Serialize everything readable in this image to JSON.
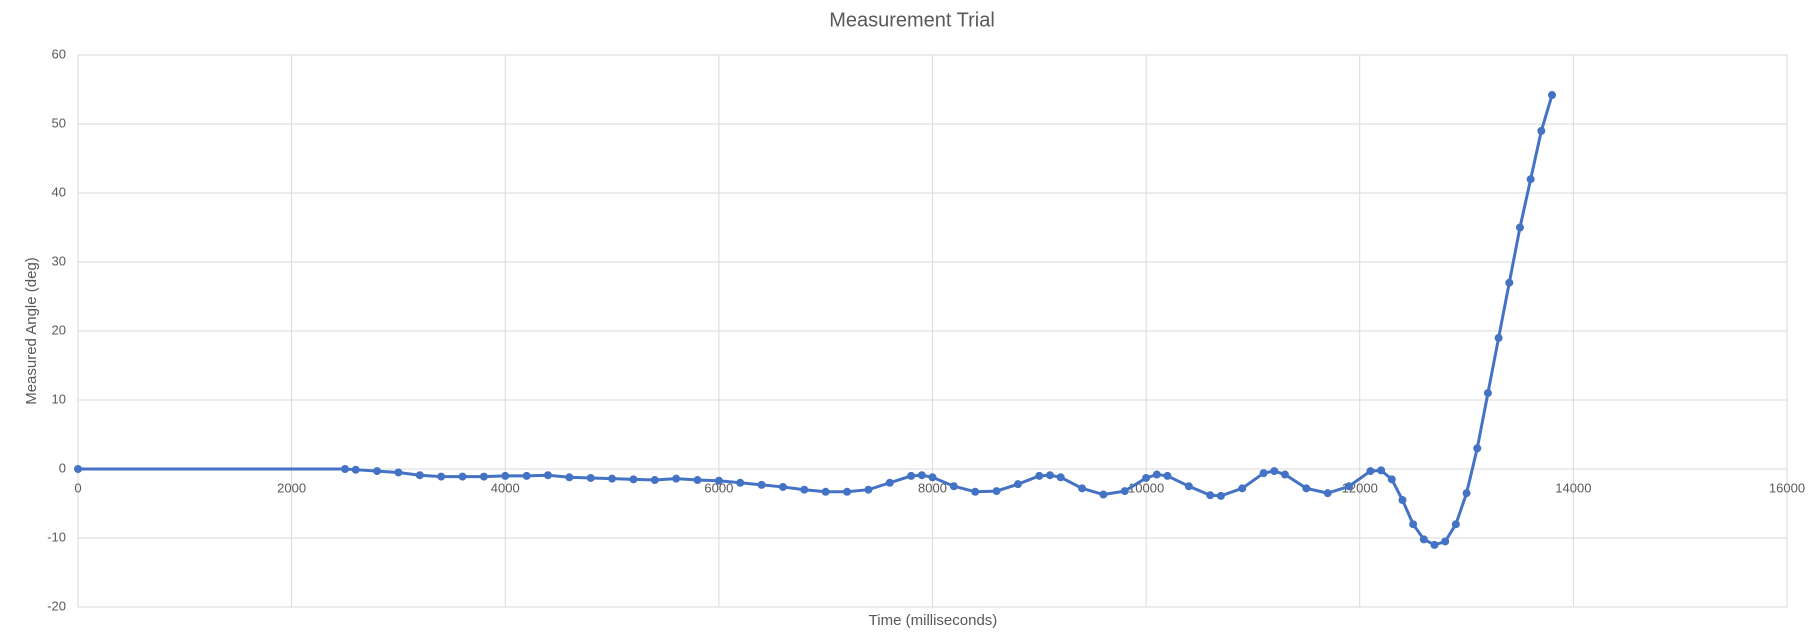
{
  "chart_data": {
    "type": "scatter-line",
    "title": "Measurement Trial",
    "x_label": "Time (milliseconds)",
    "y_label": "Measured Angle (deg)",
    "xlim": [
      0,
      16000
    ],
    "xticks": [
      0,
      2000,
      4000,
      6000,
      8000,
      10000,
      12000,
      14000,
      16000
    ],
    "ylim": [
      -20,
      60
    ],
    "yticks": [
      -20,
      -10,
      0,
      10,
      20,
      30,
      40,
      50,
      60
    ],
    "grid": true,
    "series": [
      {
        "color": "#4472c4",
        "x": [
          0,
          2500,
          2600,
          2800,
          3000,
          3200,
          3400,
          3600,
          3800,
          4000,
          4200,
          4400,
          4600,
          4800,
          5000,
          5200,
          5400,
          5600,
          5800,
          6000,
          6200,
          6400,
          6600,
          6800,
          7000,
          7200,
          7400,
          7600,
          7800,
          7900,
          8000,
          8200,
          8400,
          8600,
          8800,
          9000,
          9100,
          9200,
          9400,
          9600,
          9800,
          10000,
          10100,
          10200,
          10400,
          10600,
          10700,
          10900,
          11100,
          11200,
          11300,
          11500,
          11700,
          11900,
          12100,
          12200,
          12300,
          12400,
          12500,
          12600,
          12700,
          12800,
          12900,
          13000,
          13100,
          13200,
          13300,
          13400,
          13500,
          13600,
          13700,
          13800
        ],
        "values": [
          0,
          0,
          -0.1,
          -0.3,
          -0.5,
          -0.9,
          -1.1,
          -1.1,
          -1.1,
          -1.0,
          -1.0,
          -0.9,
          -1.2,
          -1.3,
          -1.4,
          -1.5,
          -1.6,
          -1.4,
          -1.6,
          -1.7,
          -2.0,
          -2.3,
          -2.6,
          -3.0,
          -3.3,
          -3.3,
          -3.0,
          -2.0,
          -1.0,
          -0.9,
          -1.2,
          -2.5,
          -3.3,
          -3.2,
          -2.2,
          -1.0,
          -0.9,
          -1.2,
          -2.8,
          -3.7,
          -3.2,
          -1.3,
          -0.8,
          -1.0,
          -2.5,
          -3.8,
          -3.9,
          -2.8,
          -0.6,
          -0.3,
          -0.8,
          -2.8,
          -3.5,
          -2.5,
          -0.3,
          -0.2,
          -1.5,
          -4.5,
          -8.0,
          -10.2,
          -11.0,
          -10.5,
          -8.0,
          -3.5,
          3,
          11,
          19,
          27,
          35,
          42,
          49,
          54.2
        ]
      }
    ]
  }
}
